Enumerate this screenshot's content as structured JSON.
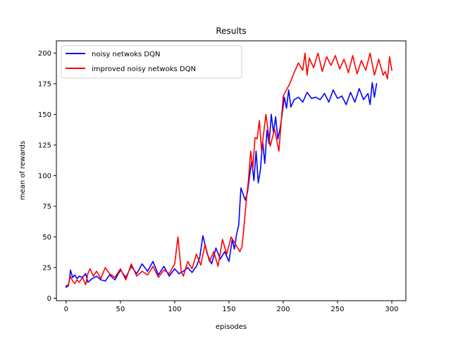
{
  "chart_data": {
    "type": "line",
    "title": "Results",
    "xlabel": "episodes",
    "ylabel": "mean of rewards",
    "xlim": [
      -9,
      313
    ],
    "ylim": [
      -2,
      210
    ],
    "xticks": [
      0,
      50,
      100,
      150,
      200,
      250,
      300
    ],
    "yticks": [
      0,
      25,
      50,
      75,
      100,
      125,
      150,
      175,
      200
    ],
    "grid": false,
    "legend_position": "top-left",
    "series": [
      {
        "name": "noisy netwoks DQN",
        "color": "#0000ff",
        "x": [
          0,
          2,
          3,
          4,
          6,
          8,
          10,
          12,
          15,
          18,
          20,
          24,
          28,
          32,
          36,
          40,
          45,
          50,
          55,
          60,
          65,
          70,
          75,
          80,
          85,
          90,
          95,
          100,
          104,
          108,
          112,
          116,
          120,
          123,
          126,
          130,
          134,
          138,
          142,
          146,
          150,
          153,
          155,
          157,
          159,
          161,
          163,
          165,
          167,
          169,
          171,
          173,
          175,
          177,
          179,
          181,
          183,
          185,
          187,
          189,
          191,
          193,
          195,
          197,
          199,
          201,
          203,
          205,
          207,
          210,
          214,
          218,
          222,
          226,
          230,
          234,
          238,
          242,
          246,
          250,
          254,
          258,
          262,
          266,
          270,
          274,
          278,
          280,
          282,
          284,
          286
        ],
        "y": [
          9,
          10,
          15,
          23,
          17,
          19,
          16,
          18,
          17,
          20,
          13,
          16,
          18,
          15,
          14,
          19,
          15,
          23,
          17,
          26,
          20,
          28,
          22,
          30,
          19,
          26,
          18,
          24,
          20,
          22,
          25,
          21,
          26,
          33,
          51,
          36,
          28,
          41,
          32,
          38,
          30,
          48,
          40,
          52,
          60,
          90,
          85,
          80,
          86,
          100,
          112,
          96,
          120,
          94,
          105,
          128,
          110,
          137,
          126,
          150,
          135,
          148,
          130,
          138,
          150,
          164,
          155,
          170,
          156,
          162,
          164,
          160,
          168,
          163,
          164,
          162,
          167,
          160,
          170,
          163,
          165,
          158,
          168,
          160,
          171,
          162,
          167,
          158,
          176,
          164,
          175
        ]
      },
      {
        "name": "improved noisy netwoks DQN",
        "color": "#ff0000",
        "x": [
          0,
          2,
          4,
          6,
          8,
          10,
          12,
          15,
          18,
          20,
          22,
          25,
          28,
          32,
          36,
          40,
          45,
          50,
          55,
          60,
          65,
          70,
          75,
          80,
          85,
          90,
          95,
          100,
          103,
          106,
          108,
          112,
          116,
          120,
          124,
          128,
          132,
          136,
          140,
          144,
          148,
          152,
          156,
          160,
          162,
          164,
          166,
          168,
          170,
          172,
          174,
          176,
          178,
          180,
          184,
          188,
          192,
          196,
          200,
          203,
          206,
          210,
          214,
          218,
          220,
          222,
          224,
          228,
          232,
          236,
          240,
          244,
          248,
          252,
          256,
          260,
          264,
          268,
          272,
          276,
          280,
          284,
          288,
          292,
          294,
          296,
          298,
          300
        ],
        "y": [
          10,
          11,
          18,
          14,
          12,
          15,
          13,
          17,
          11,
          20,
          24,
          18,
          22,
          16,
          25,
          20,
          17,
          24,
          15,
          28,
          18,
          22,
          19,
          26,
          17,
          23,
          20,
          28,
          50,
          22,
          18,
          30,
          24,
          36,
          27,
          44,
          30,
          38,
          26,
          48,
          36,
          50,
          44,
          38,
          42,
          60,
          80,
          97,
          120,
          106,
          131,
          130,
          145,
          120,
          150,
          124,
          138,
          120,
          165,
          170,
          175,
          184,
          192,
          186,
          200,
          182,
          196,
          188,
          200,
          185,
          197,
          190,
          198,
          187,
          195,
          184,
          198,
          183,
          194,
          186,
          200,
          182,
          195,
          182,
          185,
          179,
          197,
          186
        ]
      }
    ]
  }
}
